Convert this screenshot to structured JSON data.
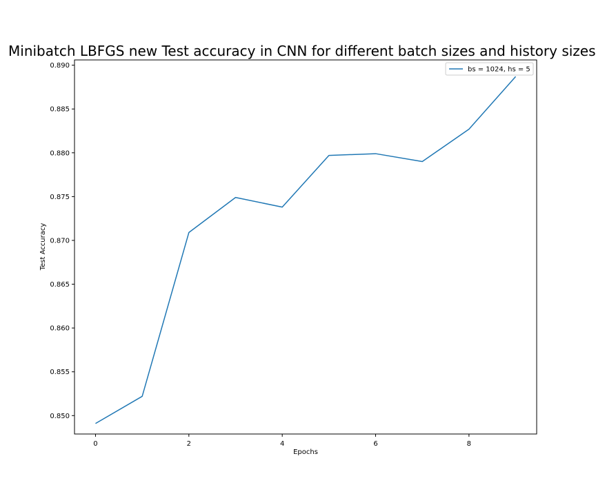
{
  "chart_data": {
    "type": "line",
    "title": "Minibatch LBFGS new Test accuracy in CNN for different batch sizes and history sizes",
    "xlabel": "Epochs",
    "ylabel": "Test Accuracy",
    "xlim": [
      -0.45,
      9.45
    ],
    "ylim": [
      0.8479,
      0.8906
    ],
    "x_ticks": [
      "0",
      "2",
      "4",
      "6",
      "8"
    ],
    "y_ticks": [
      "0.850",
      "0.855",
      "0.860",
      "0.865",
      "0.870",
      "0.875",
      "0.880",
      "0.885",
      "0.890"
    ],
    "grid": false,
    "legend_position": "top-right",
    "series": [
      {
        "name": "bs = 1024, hs = 5",
        "color": "#1f77b4",
        "x": [
          0,
          1,
          2,
          3,
          4,
          5,
          6,
          7,
          8,
          9
        ],
        "y": [
          0.8491,
          0.8522,
          0.8709,
          0.8749,
          0.8738,
          0.8797,
          0.8799,
          0.879,
          0.8827,
          0.8887
        ]
      }
    ]
  }
}
